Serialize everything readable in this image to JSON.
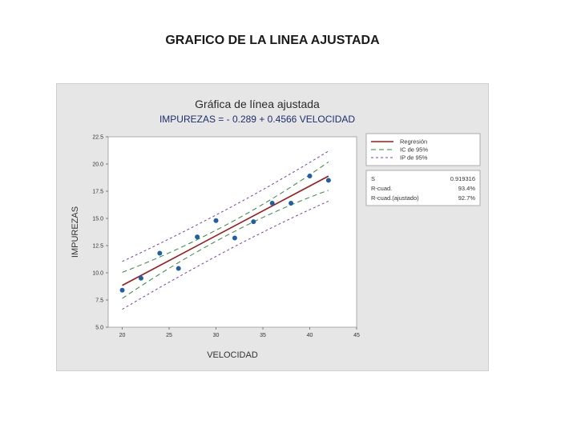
{
  "slide": {
    "title": "GRAFICO DE LA LINEA AJUSTADA"
  },
  "chart_data": {
    "type": "scatter",
    "title": "Gráfica de línea ajustada",
    "subtitle": "IMPUREZAS = - 0.289 + 0.4566 VELOCIDAD",
    "xlabel": "VELOCIDAD",
    "ylabel": "IMPUREZAS",
    "xlim": [
      18.5,
      45
    ],
    "ylim": [
      5.0,
      22.5
    ],
    "xticks": [
      20,
      25,
      30,
      35,
      40,
      45
    ],
    "yticks": [
      5.0,
      7.5,
      10.0,
      12.5,
      15.0,
      17.5,
      20.0,
      22.5
    ],
    "x_tick_labels": [
      "20",
      "25",
      "30",
      "35",
      "40",
      "45"
    ],
    "y_tick_labels": [
      "5.0",
      "7.5",
      "10.0",
      "12.5",
      "15.0",
      "17.5",
      "20.0",
      "22.5"
    ],
    "points": {
      "x": [
        20,
        22,
        24,
        26,
        28,
        30,
        32,
        34,
        36,
        38,
        40,
        42
      ],
      "y": [
        8.4,
        9.5,
        11.8,
        10.4,
        13.3,
        14.8,
        13.2,
        14.7,
        16.4,
        16.4,
        18.9,
        18.5
      ]
    },
    "regression": {
      "intercept": -0.289,
      "slope": 0.4566,
      "color": "#a01818"
    },
    "ci_half_width": [
      1.2,
      0.5,
      1.3
    ],
    "pi_half_width": [
      2.2,
      1.9,
      2.3
    ],
    "ci_color": "#2e8b3a",
    "pi_color": "#7a3fb0",
    "point_color": "#1f5fa8",
    "legend": {
      "placement": "top-right",
      "items": [
        "Regresión",
        "IC de 95%",
        "IP de 95%"
      ]
    },
    "stats": {
      "rows": [
        {
          "label": "S",
          "value": "0.919316"
        },
        {
          "label": "R-cuad.",
          "value": "93.4%"
        },
        {
          "label": "R-cuad.(ajustado)",
          "value": "92.7%"
        }
      ]
    },
    "grid": false
  }
}
